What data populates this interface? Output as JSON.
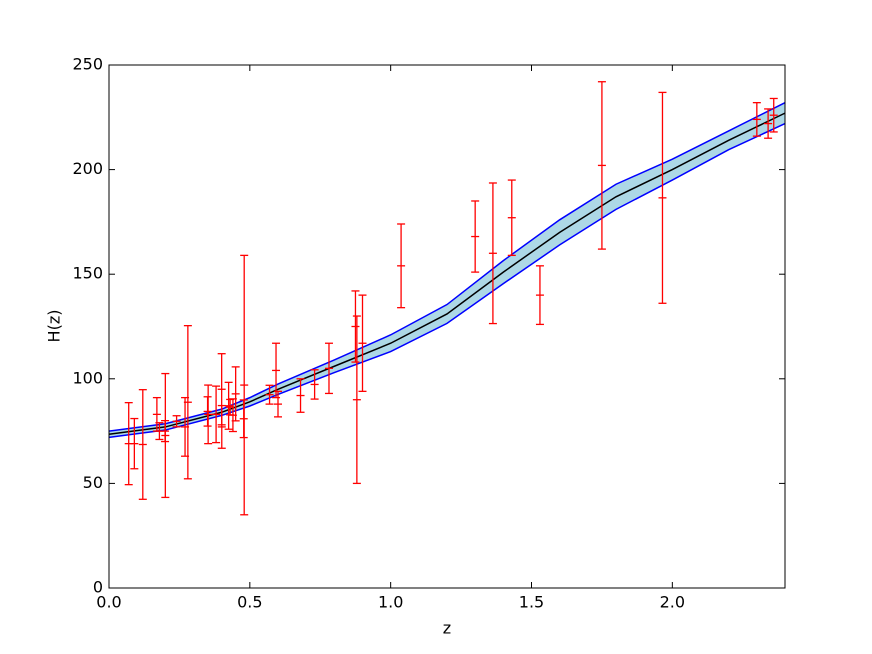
{
  "chart_data": {
    "type": "errorbar",
    "x_label": "z",
    "y_label": "H(z)",
    "xlim": [
      0,
      2.4
    ],
    "ylim": [
      0,
      250
    ],
    "xticks": [
      {
        "value": 0,
        "label": "0.0"
      },
      0.5,
      {
        "value": 1,
        "label": "1.0"
      },
      1.5,
      {
        "value": 2,
        "label": "2.0"
      }
    ],
    "yticks": [
      0,
      50,
      100,
      150,
      200,
      250
    ],
    "fit": {
      "color": "#000000",
      "edge_color": "#0000ff",
      "band_color": "#add8e6",
      "x": [
        0,
        0.2,
        0.4,
        0.5,
        0.6,
        0.8,
        1.0,
        1.2,
        1.4,
        1.6,
        1.8,
        2.0,
        2.2,
        2.4
      ],
      "values": [
        73.5,
        77,
        84,
        89,
        95,
        106,
        117,
        131,
        151,
        170,
        187,
        200,
        214,
        227
      ],
      "lower": [
        72,
        75.5,
        82.5,
        87,
        92.5,
        103,
        113,
        126.5,
        145.5,
        164,
        181,
        195,
        209.5,
        222
      ],
      "upper": [
        75,
        78.5,
        85.5,
        91,
        97.5,
        109,
        121,
        135.5,
        156.5,
        176,
        193,
        205,
        218.5,
        232
      ]
    },
    "points": {
      "color": "#ff0000",
      "x": [
        0.07,
        0.09,
        0.12,
        0.17,
        0.179,
        0.199,
        0.2,
        0.24,
        0.27,
        0.28,
        0.35,
        0.352,
        0.3802,
        0.4,
        0.4004,
        0.4247,
        0.43,
        0.44,
        0.4497,
        0.4783,
        0.48,
        0.57,
        0.593,
        0.6,
        0.68,
        0.73,
        0.781,
        0.875,
        0.88,
        0.9,
        1.037,
        1.3,
        1.363,
        1.43,
        1.53,
        1.75,
        1.965,
        2.3,
        2.34,
        2.36
      ],
      "values": [
        69,
        69,
        68.6,
        83,
        75,
        75,
        72.9,
        79.69,
        77,
        88.8,
        84.4,
        83,
        83,
        95,
        77,
        87.1,
        86.45,
        82.6,
        92.8,
        80.9,
        97,
        92.4,
        104,
        87.9,
        92,
        97.3,
        105,
        125,
        90,
        117,
        154,
        168,
        160,
        177,
        140,
        202,
        186.5,
        224,
        222,
        226
      ],
      "errors": [
        19.6,
        12,
        26.2,
        8,
        4,
        5,
        29.6,
        2.65,
        14,
        36.6,
        7,
        14,
        13.5,
        17,
        10.2,
        11.2,
        3.68,
        7.8,
        12.9,
        9,
        62,
        4.5,
        13,
        6.1,
        8,
        7,
        12,
        17,
        40,
        23,
        20,
        17,
        33.6,
        18,
        14,
        40,
        50.4,
        8,
        7,
        8
      ]
    }
  }
}
